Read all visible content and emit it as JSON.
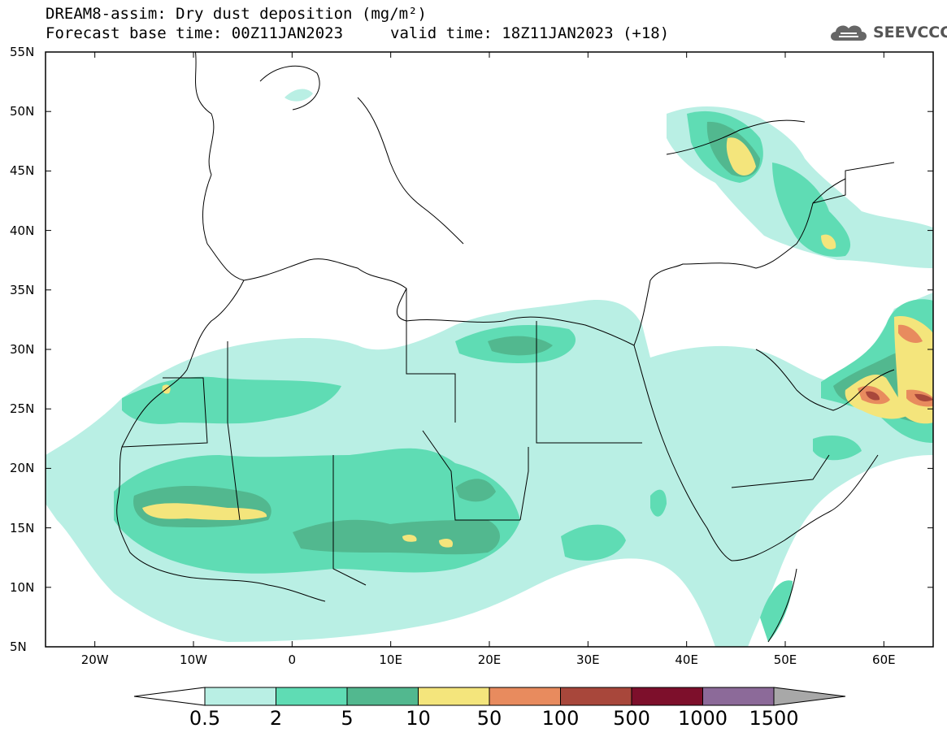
{
  "header": {
    "title": "DREAM8-assim: Dry dust deposition (mg/m²)",
    "base_time": "Forecast base time: 00Z11JAN2023",
    "valid_time": "valid time: 18Z11JAN2023 (+18)",
    "logo_text": "SEEVCCC",
    "logo_icon": "cloud-icon"
  },
  "map": {
    "lon_range": [
      -25,
      65
    ],
    "lat_range": [
      5,
      55
    ],
    "lat_labels": [
      "55N",
      "50N",
      "45N",
      "40N",
      "35N",
      "30N",
      "25N",
      "20N",
      "15N",
      "10N",
      "5N"
    ],
    "lon_labels": [
      "20W",
      "10W",
      "0",
      "10E",
      "20E",
      "30E",
      "40E",
      "50E",
      "60E"
    ]
  },
  "colorbar": {
    "labels": [
      "0.5",
      "2",
      "5",
      "10",
      "50",
      "100",
      "500",
      "1000",
      "1500"
    ],
    "colors": [
      "#ffffff",
      "#b9efe4",
      "#5fdcb4",
      "#52b88f",
      "#f4e57c",
      "#e88b5e",
      "#a8473b",
      "#7d0f2b",
      "#8c6a99",
      "#a8a8a8"
    ]
  }
}
